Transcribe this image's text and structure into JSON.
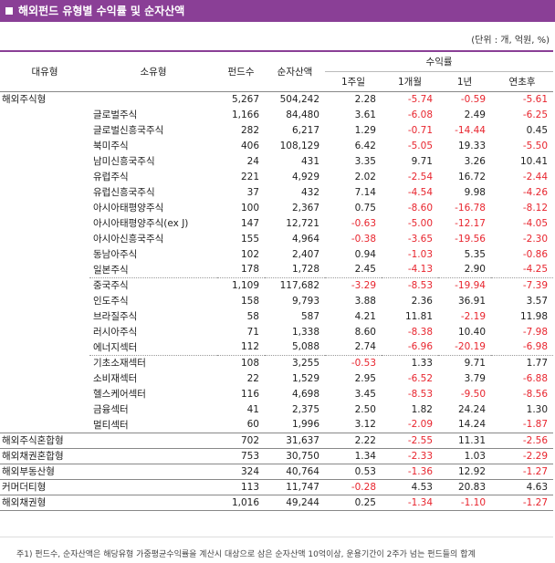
{
  "title": "해외펀드 유형별 수익률 및 순자산액",
  "unit": "(단위 : 개, 억원, %)",
  "headers": {
    "major": "대유형",
    "minor": "소유형",
    "funds": "펀드수",
    "aum": "순자산액",
    "returns": "수익률",
    "w1": "1주일",
    "m1": "1개월",
    "y1": "1년",
    "ytd": "연초후"
  },
  "rows": [
    {
      "major": "해외주식형",
      "minor": "",
      "funds": "5,267",
      "aum": "504,242",
      "w1": "2.28",
      "m1": "-5.74",
      "y1": "-0.59",
      "ytd": "-5.61"
    },
    {
      "major": "",
      "minor": "글로벌주식",
      "funds": "1,166",
      "aum": "84,480",
      "w1": "3.61",
      "m1": "-6.08",
      "y1": "2.49",
      "ytd": "-6.25"
    },
    {
      "major": "",
      "minor": "글로벌신흥국주식",
      "funds": "282",
      "aum": "6,217",
      "w1": "1.29",
      "m1": "-0.71",
      "y1": "-14.44",
      "ytd": "0.45"
    },
    {
      "major": "",
      "minor": "북미주식",
      "funds": "406",
      "aum": "108,129",
      "w1": "6.42",
      "m1": "-5.05",
      "y1": "19.33",
      "ytd": "-5.50"
    },
    {
      "major": "",
      "minor": "남미신흥국주식",
      "funds": "24",
      "aum": "431",
      "w1": "3.35",
      "m1": "9.71",
      "y1": "3.26",
      "ytd": "10.41"
    },
    {
      "major": "",
      "minor": "유럽주식",
      "funds": "221",
      "aum": "4,929",
      "w1": "2.02",
      "m1": "-2.54",
      "y1": "16.72",
      "ytd": "-2.44"
    },
    {
      "major": "",
      "minor": "유럽신흥국주식",
      "funds": "37",
      "aum": "432",
      "w1": "7.14",
      "m1": "-4.54",
      "y1": "9.98",
      "ytd": "-4.26"
    },
    {
      "major": "",
      "minor": "아시아태평양주식",
      "funds": "100",
      "aum": "2,367",
      "w1": "0.75",
      "m1": "-8.60",
      "y1": "-16.78",
      "ytd": "-8.12"
    },
    {
      "major": "",
      "minor": "아시아태평양주식(ex J)",
      "funds": "147",
      "aum": "12,721",
      "w1": "-0.63",
      "m1": "-5.00",
      "y1": "-12.17",
      "ytd": "-4.05"
    },
    {
      "major": "",
      "minor": "아시아신흥국주식",
      "funds": "155",
      "aum": "4,964",
      "w1": "-0.38",
      "m1": "-3.65",
      "y1": "-19.56",
      "ytd": "-2.30"
    },
    {
      "major": "",
      "minor": "동남아주식",
      "funds": "102",
      "aum": "2,407",
      "w1": "0.94",
      "m1": "-1.03",
      "y1": "5.35",
      "ytd": "-0.86"
    },
    {
      "major": "",
      "minor": "일본주식",
      "funds": "178",
      "aum": "1,728",
      "w1": "2.45",
      "m1": "-4.13",
      "y1": "2.90",
      "ytd": "-4.25"
    },
    {
      "major": "",
      "minor": "중국주식",
      "funds": "1,109",
      "aum": "117,682",
      "w1": "-3.29",
      "m1": "-8.53",
      "y1": "-19.94",
      "ytd": "-7.39"
    },
    {
      "major": "",
      "minor": "인도주식",
      "funds": "158",
      "aum": "9,793",
      "w1": "3.88",
      "m1": "2.36",
      "y1": "36.91",
      "ytd": "3.57"
    },
    {
      "major": "",
      "minor": "브라질주식",
      "funds": "58",
      "aum": "587",
      "w1": "4.21",
      "m1": "11.81",
      "y1": "-2.19",
      "ytd": "11.98"
    },
    {
      "major": "",
      "minor": "러시아주식",
      "funds": "71",
      "aum": "1,338",
      "w1": "8.60",
      "m1": "-8.38",
      "y1": "10.40",
      "ytd": "-7.98"
    },
    {
      "major": "",
      "minor": "에너지섹터",
      "funds": "112",
      "aum": "5,088",
      "w1": "2.74",
      "m1": "-6.96",
      "y1": "-20.19",
      "ytd": "-6.98"
    },
    {
      "major": "",
      "minor": "기초소재섹터",
      "funds": "108",
      "aum": "3,255",
      "w1": "-0.53",
      "m1": "1.33",
      "y1": "9.71",
      "ytd": "1.77"
    },
    {
      "major": "",
      "minor": "소비재섹터",
      "funds": "22",
      "aum": "1,529",
      "w1": "2.95",
      "m1": "-6.52",
      "y1": "3.79",
      "ytd": "-6.88"
    },
    {
      "major": "",
      "minor": "헬스케어섹터",
      "funds": "116",
      "aum": "4,698",
      "w1": "3.45",
      "m1": "-8.53",
      "y1": "-9.50",
      "ytd": "-8.56"
    },
    {
      "major": "",
      "minor": "금융섹터",
      "funds": "41",
      "aum": "2,375",
      "w1": "2.50",
      "m1": "1.82",
      "y1": "24.24",
      "ytd": "1.30"
    },
    {
      "major": "",
      "minor": "멀티섹터",
      "funds": "60",
      "aum": "1,996",
      "w1": "3.12",
      "m1": "-2.09",
      "y1": "14.24",
      "ytd": "-1.87"
    },
    {
      "major": "해외주식혼합형",
      "minor": "",
      "funds": "702",
      "aum": "31,637",
      "w1": "2.22",
      "m1": "-2.55",
      "y1": "11.31",
      "ytd": "-2.56"
    },
    {
      "major": "해외채권혼합형",
      "minor": "",
      "funds": "753",
      "aum": "30,750",
      "w1": "1.34",
      "m1": "-2.33",
      "y1": "1.03",
      "ytd": "-2.29"
    },
    {
      "major": "해외부동산형",
      "minor": "",
      "funds": "324",
      "aum": "40,764",
      "w1": "0.53",
      "m1": "-1.36",
      "y1": "12.92",
      "ytd": "-1.27"
    },
    {
      "major": "커머더티형",
      "minor": "",
      "funds": "113",
      "aum": "11,747",
      "w1": "-0.28",
      "m1": "4.53",
      "y1": "20.83",
      "ytd": "4.63"
    },
    {
      "major": "해외채권형",
      "minor": "",
      "funds": "1,016",
      "aum": "49,244",
      "w1": "0.25",
      "m1": "-1.34",
      "y1": "-1.10",
      "ytd": "-1.27"
    }
  ],
  "footnote": "주1) 펀드수, 순자산액은 해당유형 가중평균수익률을 계산시 대상으로 삼은 순자산액 10억이상, 운용기간이 2주가 넘는 펀드들의 합계",
  "colors": {
    "accent": "#8a3f96",
    "negative": "#e8252e"
  }
}
